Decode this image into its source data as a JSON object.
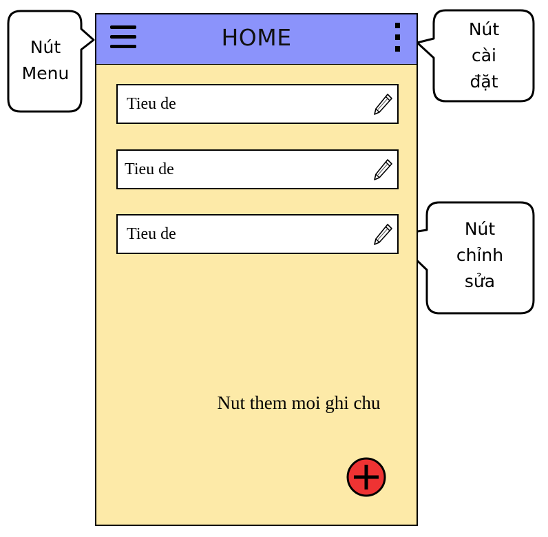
{
  "app": {
    "title": "HOME",
    "appbar_color": "#8b93fb",
    "background_color": "#fdeaa8",
    "fab_color": "#ee3333"
  },
  "notes": [
    {
      "title": "Tieu de",
      "icon": "pencil-icon"
    },
    {
      "title": "Tieu de",
      "icon": "pencil-icon"
    },
    {
      "title": "Tieu de",
      "icon": "pencil-icon"
    }
  ],
  "callouts": {
    "menu": [
      "Nút",
      "Menu"
    ],
    "settings": [
      "Nút",
      "cài",
      "đặt"
    ],
    "edit": [
      "Nút",
      "chỉnh",
      "sửa"
    ],
    "add": "Nut them moi ghi chu"
  }
}
